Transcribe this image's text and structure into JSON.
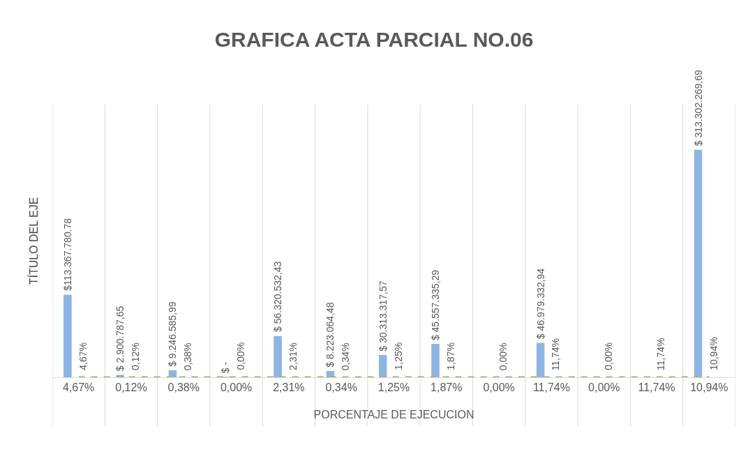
{
  "chart_data": {
    "type": "bar",
    "title": "GRAFICA ACTA PARCIAL NO.06",
    "xlabel": "PORCENTAJE DE EJECUCION",
    "ylabel": "TÍTULO DEL EJE",
    "categories": [
      "4,67%",
      "0,12%",
      "0,38%",
      "0,00%",
      "2,31%",
      "0,34%",
      "1,25%",
      "1,87%",
      "0,00%",
      "11,74%",
      "0,00%",
      "11,74%",
      "10,94%"
    ],
    "series": [
      {
        "color": "#8eb4e3",
        "values": [
          113367780.78,
          2900787.65,
          9246585.99,
          0,
          56320532.43,
          8223064.48,
          30313317.57,
          45557335.29,
          null,
          46979332.94,
          null,
          null,
          313302269.69
        ],
        "value_labels": [
          "$113.367.780.78",
          "$ 2.900.787,65",
          "$ 9.246.585,99",
          "$ -",
          "$ 56.320.532,43",
          "$ 8.223.064,48",
          "$ 30.313.317,57",
          "$ 45.557.335,29",
          null,
          "$ 46.979.332,94",
          null,
          null,
          "$ 313.302.269,69"
        ]
      },
      {
        "type": "line",
        "color": "#9bbb59",
        "line_style": "dashed",
        "marker": "none",
        "values": [
          4.67,
          0.12,
          0.38,
          0.0,
          2.31,
          0.34,
          1.25,
          1.87,
          0.0,
          11.74,
          0.0,
          11.74,
          10.94
        ],
        "value_labels": [
          "4,67%",
          "0,12%",
          "0,38%",
          "0,00%",
          "2,31%",
          "0,34%",
          "1,25%",
          "1,87%",
          "0,00%",
          "11,74%",
          "0,00%",
          "11,74%",
          "10,94%"
        ]
      }
    ],
    "grid": "x",
    "tick_labels": "x"
  }
}
